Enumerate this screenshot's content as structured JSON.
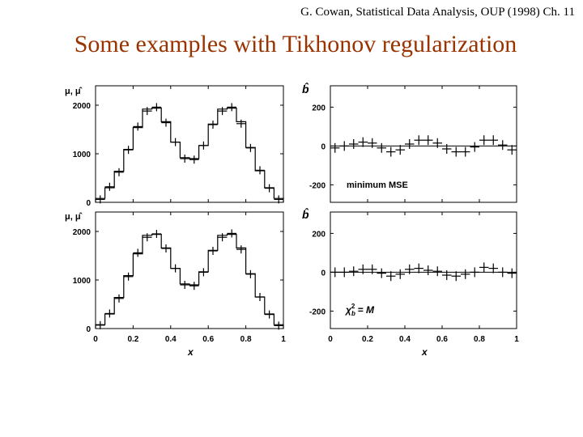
{
  "header": {
    "reference": "G. Cowan, Statistical Data Analysis, OUP (1998) Ch. 11",
    "title": "Some examples with Tikhonov regularization"
  },
  "chart_data": [
    {
      "type": "line",
      "ylabel": "μ, μ̂",
      "xlim": [
        0,
        1
      ],
      "ylim": [
        0,
        2400
      ],
      "yticks": [
        "0",
        "1000",
        "2000"
      ],
      "x": [
        0.025,
        0.075,
        0.125,
        0.175,
        0.225,
        0.275,
        0.325,
        0.375,
        0.425,
        0.475,
        0.525,
        0.575,
        0.625,
        0.675,
        0.725,
        0.775,
        0.825,
        0.875,
        0.925,
        0.975
      ],
      "series": [
        {
          "role": "true-histogram",
          "values": [
            80,
            300,
            640,
            1090,
            1540,
            1920,
            1940,
            1660,
            1240,
            920,
            900,
            1170,
            1610,
            1920,
            1940,
            1660,
            1130,
            650,
            300,
            80
          ]
        },
        {
          "role": "estimate-points",
          "values": [
            60,
            320,
            620,
            1080,
            1560,
            1880,
            1960,
            1640,
            1240,
            900,
            880,
            1170,
            1600,
            1880,
            1960,
            1620,
            1120,
            660,
            290,
            60
          ]
        }
      ]
    },
    {
      "type": "scatter",
      "ylabel": "b̂",
      "xlim": [
        0,
        1
      ],
      "ylim": [
        -290,
        310
      ],
      "yticks": [
        "200",
        "0",
        "-200"
      ],
      "annotation": "minimum MSE",
      "x": [
        0.025,
        0.075,
        0.125,
        0.175,
        0.225,
        0.275,
        0.325,
        0.375,
        0.425,
        0.475,
        0.525,
        0.575,
        0.625,
        0.675,
        0.725,
        0.775,
        0.825,
        0.875,
        0.925,
        0.975
      ],
      "values": [
        -10,
        0,
        10,
        20,
        15,
        -10,
        -30,
        -20,
        10,
        30,
        30,
        15,
        -15,
        -30,
        -30,
        -5,
        30,
        30,
        5,
        -20
      ]
    },
    {
      "type": "line",
      "ylabel": "μ, μ̂",
      "xlabel": "x",
      "xlim": [
        0,
        1
      ],
      "ylim": [
        0,
        2400
      ],
      "yticks": [
        "0",
        "1000",
        "2000"
      ],
      "xticks": [
        "0",
        "0.2",
        "0.4",
        "0.6",
        "0.8",
        "1"
      ],
      "x": [
        0.025,
        0.075,
        0.125,
        0.175,
        0.225,
        0.275,
        0.325,
        0.375,
        0.425,
        0.475,
        0.525,
        0.575,
        0.625,
        0.675,
        0.725,
        0.775,
        0.825,
        0.875,
        0.925,
        0.975
      ],
      "series": [
        {
          "role": "true-histogram",
          "values": [
            80,
            300,
            640,
            1090,
            1540,
            1920,
            1940,
            1660,
            1240,
            920,
            900,
            1170,
            1610,
            1920,
            1940,
            1660,
            1130,
            650,
            300,
            80
          ]
        },
        {
          "role": "estimate-points",
          "values": [
            70,
            310,
            620,
            1070,
            1560,
            1880,
            1950,
            1650,
            1240,
            900,
            880,
            1160,
            1600,
            1880,
            1960,
            1630,
            1120,
            650,
            290,
            60
          ]
        }
      ]
    },
    {
      "type": "scatter",
      "ylabel": "b̂",
      "xlabel": "x",
      "xlim": [
        0,
        1
      ],
      "ylim": [
        -290,
        310
      ],
      "yticks": [
        "200",
        "0",
        "-200"
      ],
      "xticks": [
        "0",
        "0.2",
        "0.4",
        "0.6",
        "0.8",
        "1"
      ],
      "annotation_parts": {
        "chi": "χ",
        "sub": "b",
        "sup": "2",
        "rest": " = M"
      },
      "x": [
        0.025,
        0.075,
        0.125,
        0.175,
        0.225,
        0.275,
        0.325,
        0.375,
        0.425,
        0.475,
        0.525,
        0.575,
        0.625,
        0.675,
        0.725,
        0.775,
        0.825,
        0.875,
        0.925,
        0.975
      ],
      "values": [
        0,
        0,
        5,
        15,
        15,
        -5,
        -20,
        -10,
        15,
        20,
        10,
        5,
        -15,
        -20,
        -10,
        0,
        25,
        20,
        0,
        -5
      ]
    }
  ]
}
